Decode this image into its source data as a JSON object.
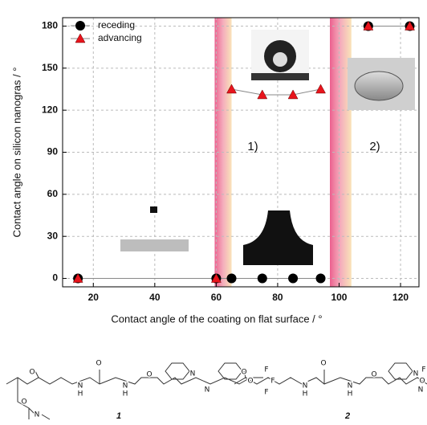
{
  "chart_data": {
    "type": "line",
    "x_label": "Contact angle of the coating on flat surface / °",
    "y_label": "Contact angle on silicon nanogras / °",
    "xlim": [
      10,
      126
    ],
    "ylim": [
      -6,
      186
    ],
    "xticks": [
      20,
      40,
      60,
      80,
      100,
      120
    ],
    "yticks": [
      0,
      30,
      60,
      90,
      120,
      150,
      180
    ],
    "grid": true,
    "legend": "upper left",
    "shaded_regions": [
      [
        59.5,
        65
      ],
      [
        97,
        104
      ]
    ],
    "annotations": [
      "1)",
      "2)"
    ],
    "series": [
      {
        "name": "receding",
        "color": "#000000",
        "marker": "circle",
        "x": [
          15,
          60,
          65,
          75,
          85,
          94,
          null,
          109.5,
          123
        ],
        "values": [
          0,
          0,
          0,
          0,
          0,
          0,
          null,
          180,
          180
        ]
      },
      {
        "name": "advancing",
        "color": "#e8141c",
        "marker": "triangle",
        "x": [
          15,
          60,
          null,
          65,
          75,
          85,
          94,
          null,
          109.5,
          123
        ],
        "values": [
          0,
          0,
          null,
          135,
          131,
          131,
          135,
          null,
          180,
          180
        ]
      }
    ]
  },
  "structures": [
    {
      "label": "1",
      "atoms": [
        "O",
        "N",
        "H",
        "O",
        "N",
        "H",
        "O",
        "N",
        "N",
        "O",
        "F",
        "F",
        "F",
        "O",
        "N"
      ]
    },
    {
      "label": "2",
      "atoms": [
        "O",
        "N",
        "H",
        "O",
        "N",
        "H",
        "O",
        "N",
        "N",
        "O",
        "F"
      ]
    }
  ]
}
